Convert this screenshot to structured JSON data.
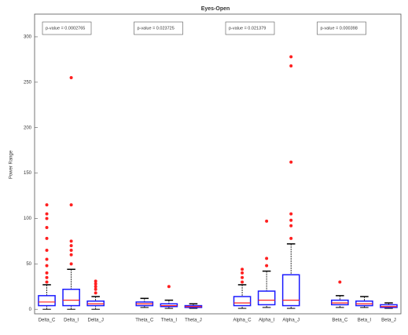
{
  "chart_data": {
    "type": "box",
    "title": "Eyes-Open",
    "y_label": "Power Range",
    "categories": [
      "Delta_C",
      "Delta_I",
      "Delta_J",
      null,
      "Theta_C",
      "Theta_I",
      "Theta_J",
      null,
      "Alpha_C",
      "Alpha_I",
      "Alpha_J",
      null,
      "Beta_C",
      "Beta_I",
      "Beta_J"
    ],
    "whisker_low": [
      0,
      0,
      0,
      null,
      2,
      1,
      1,
      null,
      1,
      2,
      1,
      null,
      2,
      2,
      1
    ],
    "q1": [
      4,
      4,
      4,
      null,
      4,
      3,
      2,
      null,
      4,
      5,
      4,
      null,
      5,
      4,
      2
    ],
    "median": [
      8,
      10,
      6,
      null,
      6,
      4,
      3,
      null,
      7,
      10,
      10,
      null,
      7,
      6,
      3
    ],
    "q3": [
      15,
      22,
      9,
      null,
      8,
      6,
      4,
      null,
      14,
      20,
      38,
      null,
      10,
      9,
      5
    ],
    "whisker_high": [
      27,
      44,
      14,
      null,
      12,
      10,
      6,
      null,
      27,
      42,
      72,
      null,
      15,
      14,
      7
    ],
    "outliers": [
      [
        30,
        35,
        40,
        48,
        55,
        65,
        78,
        90,
        100,
        105,
        115
      ],
      [
        50,
        60,
        65,
        70,
        75,
        115,
        255
      ],
      [
        18,
        22,
        25,
        28,
        31
      ],
      null,
      [],
      [
        25
      ],
      [],
      null,
      [
        30,
        35,
        40,
        44
      ],
      [
        48,
        56,
        97
      ],
      [
        78,
        92,
        98,
        105,
        162,
        268,
        278
      ],
      null,
      [
        30
      ],
      [],
      []
    ],
    "box_color": "#1a1aff",
    "median_color": "#ff2020",
    "outlier_color": "#ff2020",
    "whisker_color": "#000000",
    "ylim": [
      -5,
      325
    ],
    "yticks": [
      0,
      50,
      100,
      150,
      200,
      250,
      300
    ],
    "annotations": [
      "p-value = 0.0002765",
      "p-value = 0.023725",
      "p-value = 0.021379",
      "p-value = 0.000398"
    ]
  }
}
